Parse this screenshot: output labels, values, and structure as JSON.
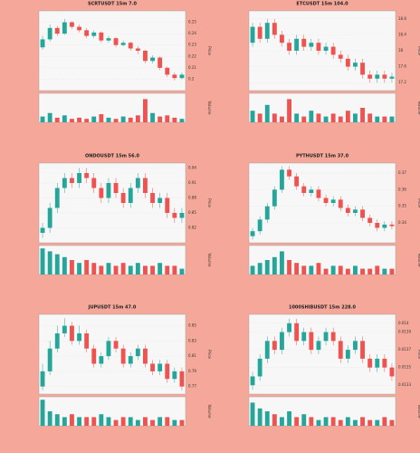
{
  "chart_data": [
    {
      "type": "candlestick",
      "title": "SCRTUSDT 15m 7.0",
      "ylabel": "Price",
      "y2label": "Volume",
      "open": [
        0.228,
        0.235,
        0.245,
        0.24,
        0.25,
        0.246,
        0.243,
        0.238,
        0.241,
        0.234,
        0.236,
        0.23,
        0.232,
        0.227,
        0.225,
        0.216,
        0.219,
        0.21,
        0.204,
        0.201
      ],
      "high": [
        0.238,
        0.248,
        0.247,
        0.253,
        0.251,
        0.248,
        0.245,
        0.243,
        0.242,
        0.238,
        0.237,
        0.234,
        0.233,
        0.229,
        0.226,
        0.221,
        0.22,
        0.211,
        0.206,
        0.206
      ],
      "low": [
        0.226,
        0.233,
        0.238,
        0.239,
        0.244,
        0.241,
        0.236,
        0.236,
        0.232,
        0.232,
        0.228,
        0.229,
        0.225,
        0.222,
        0.214,
        0.214,
        0.208,
        0.202,
        0.199,
        0.2
      ],
      "close": [
        0.235,
        0.245,
        0.24,
        0.25,
        0.246,
        0.243,
        0.238,
        0.241,
        0.234,
        0.236,
        0.23,
        0.232,
        0.227,
        0.225,
        0.216,
        0.219,
        0.21,
        0.204,
        0.201,
        0.204
      ],
      "volume": [
        5,
        8,
        4,
        6,
        3,
        4,
        3,
        5,
        7,
        4,
        3,
        5,
        4,
        6,
        20,
        8,
        5,
        6,
        4,
        3
      ],
      "ylim": [
        0.19,
        0.26
      ],
      "yticks": [
        0.2,
        0.21,
        0.22,
        0.23,
        0.24,
        0.25
      ],
      "y2lim": [
        0,
        25
      ],
      "up_color": "#26a69a",
      "down_color": "#ef5350"
    },
    {
      "type": "candlestick",
      "title": "ETCUSDT 15m 104.0",
      "ylabel": "Price",
      "y2label": "Volume",
      "open": [
        18.2,
        18.6,
        18.3,
        18.7,
        18.4,
        18.2,
        18,
        18.3,
        18.1,
        18.2,
        18,
        18.1,
        17.9,
        17.8,
        17.6,
        17.7,
        17.4,
        17.3,
        17.4,
        17.3
      ],
      "high": [
        18.7,
        18.7,
        18.8,
        18.8,
        18.5,
        18.3,
        18.4,
        18.4,
        18.3,
        18.3,
        18.2,
        18.2,
        18,
        17.9,
        17.8,
        17.8,
        17.5,
        17.5,
        17.5,
        17.45
      ],
      "low": [
        18.1,
        18.2,
        18.2,
        18.3,
        18.1,
        17.9,
        17.9,
        18,
        18,
        17.9,
        17.9,
        17.8,
        17.7,
        17.5,
        17.5,
        17.3,
        17.2,
        17.2,
        17.2,
        17.2
      ],
      "close": [
        18.6,
        18.3,
        18.7,
        18.4,
        18.2,
        18,
        18.3,
        18.1,
        18.2,
        18,
        18.1,
        17.9,
        17.8,
        17.6,
        17.7,
        17.4,
        17.3,
        17.4,
        17.3,
        17.35
      ],
      "volume": [
        4,
        3,
        6,
        3,
        2,
        8,
        3,
        2,
        4,
        3,
        2,
        3,
        2,
        4,
        3,
        5,
        3,
        2,
        2,
        2
      ],
      "ylim": [
        17,
        19
      ],
      "yticks": [
        17.2,
        17.6,
        18,
        18.4,
        18.8
      ],
      "y2lim": [
        0,
        10
      ],
      "up_color": "#26a69a",
      "down_color": "#ef5350"
    },
    {
      "type": "candlestick",
      "title": "ONDOUSDT 15m 56.0",
      "ylabel": "Price",
      "y2label": "Volume",
      "open": [
        0.81,
        0.82,
        0.86,
        0.9,
        0.92,
        0.91,
        0.93,
        0.92,
        0.9,
        0.88,
        0.91,
        0.89,
        0.87,
        0.9,
        0.92,
        0.89,
        0.87,
        0.88,
        0.85,
        0.84
      ],
      "high": [
        0.83,
        0.87,
        0.91,
        0.93,
        0.93,
        0.94,
        0.94,
        0.93,
        0.91,
        0.92,
        0.92,
        0.9,
        0.91,
        0.93,
        0.93,
        0.9,
        0.89,
        0.89,
        0.86,
        0.86
      ],
      "low": [
        0.8,
        0.81,
        0.85,
        0.89,
        0.9,
        0.9,
        0.91,
        0.89,
        0.87,
        0.87,
        0.88,
        0.86,
        0.86,
        0.89,
        0.88,
        0.86,
        0.86,
        0.84,
        0.83,
        0.83
      ],
      "close": [
        0.82,
        0.86,
        0.9,
        0.92,
        0.91,
        0.93,
        0.92,
        0.9,
        0.88,
        0.91,
        0.89,
        0.87,
        0.9,
        0.92,
        0.89,
        0.87,
        0.88,
        0.85,
        0.84,
        0.85
      ],
      "volume": [
        9,
        8,
        7,
        6,
        5,
        4,
        5,
        4,
        3,
        4,
        3,
        4,
        3,
        4,
        3,
        3,
        4,
        3,
        3,
        2
      ],
      "ylim": [
        0.79,
        0.95
      ],
      "yticks": [
        0.82,
        0.85,
        0.88,
        0.91,
        0.94
      ],
      "y2lim": [
        0,
        10
      ],
      "up_color": "#26a69a",
      "down_color": "#ef5350"
    },
    {
      "type": "candlestick",
      "title": "PYTHUSDT 15m 37.0",
      "ylabel": "Price",
      "y2label": "Volume",
      "open": [
        0.332,
        0.335,
        0.342,
        0.35,
        0.36,
        0.372,
        0.368,
        0.362,
        0.358,
        0.36,
        0.355,
        0.352,
        0.354,
        0.349,
        0.346,
        0.348,
        0.343,
        0.34,
        0.337,
        0.339
      ],
      "high": [
        0.337,
        0.344,
        0.352,
        0.362,
        0.374,
        0.374,
        0.37,
        0.364,
        0.362,
        0.362,
        0.357,
        0.356,
        0.356,
        0.351,
        0.35,
        0.35,
        0.345,
        0.342,
        0.341,
        0.341
      ],
      "low": [
        0.33,
        0.333,
        0.34,
        0.348,
        0.358,
        0.366,
        0.36,
        0.356,
        0.356,
        0.353,
        0.35,
        0.35,
        0.347,
        0.344,
        0.344,
        0.341,
        0.338,
        0.335,
        0.335,
        0.336
      ],
      "close": [
        0.335,
        0.342,
        0.35,
        0.36,
        0.372,
        0.368,
        0.362,
        0.358,
        0.36,
        0.355,
        0.352,
        0.354,
        0.349,
        0.346,
        0.348,
        0.343,
        0.34,
        0.337,
        0.339,
        0.338
      ],
      "volume": [
        3,
        4,
        5,
        6,
        8,
        5,
        4,
        3,
        3,
        4,
        2,
        3,
        3,
        2,
        3,
        2,
        2,
        3,
        2,
        2
      ],
      "ylim": [
        0.328,
        0.376
      ],
      "yticks": [
        0.34,
        0.35,
        0.36,
        0.37
      ],
      "y2lim": [
        0,
        10
      ],
      "up_color": "#26a69a",
      "down_color": "#ef5350"
    },
    {
      "type": "candlestick",
      "title": "JUPUSDT 15m 47.0",
      "ylabel": "Price",
      "y2label": "Volume",
      "open": [
        0.77,
        0.79,
        0.82,
        0.84,
        0.85,
        0.83,
        0.84,
        0.82,
        0.8,
        0.81,
        0.83,
        0.82,
        0.8,
        0.81,
        0.82,
        0.8,
        0.79,
        0.8,
        0.78,
        0.79
      ],
      "high": [
        0.8,
        0.83,
        0.85,
        0.86,
        0.855,
        0.85,
        0.845,
        0.825,
        0.815,
        0.835,
        0.835,
        0.825,
        0.815,
        0.825,
        0.825,
        0.805,
        0.805,
        0.805,
        0.795,
        0.795
      ],
      "low": [
        0.765,
        0.785,
        0.815,
        0.835,
        0.825,
        0.825,
        0.815,
        0.795,
        0.795,
        0.805,
        0.815,
        0.795,
        0.795,
        0.805,
        0.795,
        0.785,
        0.785,
        0.775,
        0.775,
        0.765
      ],
      "close": [
        0.79,
        0.82,
        0.84,
        0.85,
        0.83,
        0.84,
        0.82,
        0.8,
        0.81,
        0.83,
        0.82,
        0.8,
        0.81,
        0.82,
        0.8,
        0.79,
        0.8,
        0.78,
        0.79,
        0.77
      ],
      "volume": [
        9,
        5,
        4,
        3,
        4,
        3,
        3,
        3,
        4,
        3,
        2,
        3,
        3,
        2,
        3,
        2,
        3,
        3,
        2,
        2
      ],
      "ylim": [
        0.76,
        0.865
      ],
      "yticks": [
        0.77,
        0.79,
        0.81,
        0.83,
        0.85
      ],
      "y2lim": [
        0,
        10
      ],
      "up_color": "#26a69a",
      "down_color": "#ef5350"
    },
    {
      "type": "candlestick",
      "title": "1000SHIBUSDT 15m 228.0",
      "ylabel": "Price",
      "y2label": "Volume",
      "open": [
        0.0133,
        0.0134,
        0.0136,
        0.0138,
        0.0137,
        0.0139,
        0.014,
        0.0138,
        0.0139,
        0.0137,
        0.0138,
        0.0139,
        0.0138,
        0.0136,
        0.0137,
        0.0138,
        0.0136,
        0.0135,
        0.0136,
        0.0135
      ],
      "high": [
        0.01345,
        0.01365,
        0.01385,
        0.01385,
        0.01395,
        0.01405,
        0.01405,
        0.01395,
        0.01395,
        0.01385,
        0.01395,
        0.01395,
        0.01385,
        0.01375,
        0.01385,
        0.01385,
        0.01365,
        0.01365,
        0.01365,
        0.01355
      ],
      "low": [
        0.01325,
        0.01335,
        0.01355,
        0.01365,
        0.01365,
        0.01385,
        0.01375,
        0.01375,
        0.01365,
        0.01365,
        0.01375,
        0.01375,
        0.01355,
        0.01355,
        0.01365,
        0.01355,
        0.01345,
        0.01345,
        0.01345,
        0.01335
      ],
      "close": [
        0.0134,
        0.0136,
        0.0138,
        0.0137,
        0.0139,
        0.014,
        0.0138,
        0.0139,
        0.0137,
        0.0138,
        0.0139,
        0.0138,
        0.0136,
        0.0137,
        0.0138,
        0.0136,
        0.0135,
        0.0136,
        0.0135,
        0.0134
      ],
      "volume": [
        8,
        6,
        5,
        4,
        3,
        5,
        3,
        4,
        3,
        2,
        3,
        3,
        2,
        3,
        2,
        3,
        2,
        2,
        3,
        2
      ],
      "ylim": [
        0.0132,
        0.0141
      ],
      "yticks": [
        0.0133,
        0.0135,
        0.0137,
        0.0139,
        0.014
      ],
      "y2lim": [
        0,
        10
      ],
      "up_color": "#26a69a",
      "down_color": "#ef5350"
    }
  ]
}
